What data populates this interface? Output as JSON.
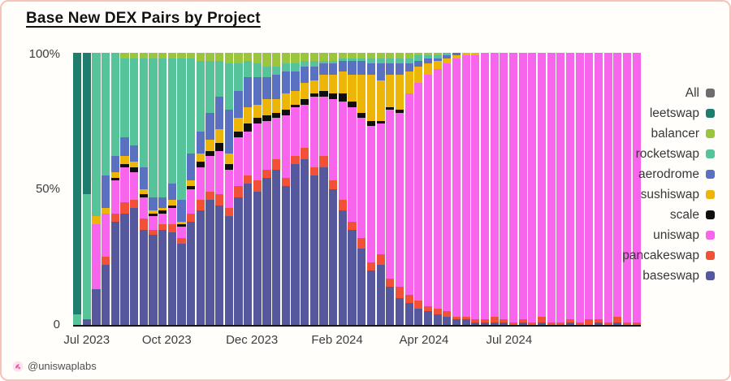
{
  "title": "Base New DEX Pairs by Project",
  "watermark": {
    "handle": "@uniswaplabs",
    "icon": "uniswap-unicorn-logo"
  },
  "legend": {
    "items": [
      {
        "label": "All",
        "color": "#6d6d6d"
      },
      {
        "label": "leetswap",
        "color": "#1e7d6d"
      },
      {
        "label": "balancer",
        "color": "#9bc53d"
      },
      {
        "label": "rocketswap",
        "color": "#57c39b"
      },
      {
        "label": "aerodrome",
        "color": "#5a70c0"
      },
      {
        "label": "sushiswap",
        "color": "#edb508"
      },
      {
        "label": "scale",
        "color": "#0f0f0f"
      },
      {
        "label": "uniswap",
        "color": "#f765ec"
      },
      {
        "label": "pancakeswap",
        "color": "#f25138"
      },
      {
        "label": "baseswap",
        "color": "#55589d"
      }
    ]
  },
  "chart_data": {
    "type": "bar",
    "stacked": true,
    "normalized": "percent",
    "title": "Base New DEX Pairs by Project",
    "xlabel": "",
    "ylabel": "",
    "ylim": [
      0,
      100
    ],
    "grid": false,
    "legend_position": "right-outside",
    "yticks": [
      "100%",
      "50%",
      "0"
    ],
    "xticks": [
      {
        "label": "Jul 2023",
        "pos": 2.4
      },
      {
        "label": "Oct 2023",
        "pos": 16.5
      },
      {
        "label": "Dec 2023",
        "pos": 31.5
      },
      {
        "label": "Feb 2024",
        "pos": 46.5
      },
      {
        "label": "Apr 2024",
        "pos": 61.8
      },
      {
        "label": "Jul 2024",
        "pos": 76.8
      }
    ],
    "series_order_bottom_to_top": [
      "baseswap",
      "pancakeswap",
      "uniswap",
      "scale",
      "sushiswap",
      "aerodrome",
      "rocketswap",
      "balancer",
      "leetswap"
    ],
    "series_colors": {
      "baseswap": "#55589d",
      "pancakeswap": "#f25138",
      "uniswap": "#f765ec",
      "scale": "#0f0f0f",
      "sushiswap": "#edb508",
      "aerodrome": "#5a70c0",
      "rocketswap": "#57c39b",
      "balancer": "#9bc53d",
      "leetswap": "#1e7d6d"
    },
    "bars": [
      [
        0,
        0,
        0,
        0,
        0,
        0,
        4,
        0,
        96
      ],
      [
        2,
        0,
        0,
        0,
        0,
        0,
        46,
        0,
        52
      ],
      [
        13,
        0,
        24,
        0,
        3,
        0,
        60,
        0,
        0
      ],
      [
        22,
        3,
        16,
        0,
        2,
        12,
        45,
        0,
        0
      ],
      [
        38,
        3,
        12,
        1,
        2,
        6,
        38,
        0,
        0
      ],
      [
        41,
        4,
        13,
        1,
        3,
        7,
        29,
        2,
        0
      ],
      [
        43,
        3,
        10,
        2,
        2,
        6,
        32,
        2,
        0
      ],
      [
        35,
        4,
        8,
        1,
        2,
        8,
        40,
        2,
        0
      ],
      [
        33,
        2,
        5,
        1,
        1,
        5,
        51,
        2,
        0
      ],
      [
        35,
        2,
        4,
        1,
        1,
        4,
        51,
        2,
        0
      ],
      [
        34,
        3,
        6,
        1,
        2,
        6,
        46,
        2,
        0
      ],
      [
        30,
        2,
        4,
        1,
        1,
        8,
        52,
        2,
        0
      ],
      [
        38,
        3,
        9,
        1,
        2,
        10,
        35,
        2,
        0
      ],
      [
        42,
        4,
        12,
        2,
        3,
        8,
        26,
        3,
        0
      ],
      [
        46,
        3,
        13,
        2,
        4,
        10,
        19,
        3,
        0
      ],
      [
        44,
        4,
        16,
        3,
        5,
        12,
        13,
        3,
        0
      ],
      [
        40,
        3,
        14,
        2,
        4,
        16,
        17,
        4,
        0
      ],
      [
        47,
        4,
        18,
        2,
        5,
        10,
        10,
        4,
        0
      ],
      [
        52,
        3,
        16,
        3,
        6,
        11,
        6,
        3,
        0
      ],
      [
        49,
        4,
        21,
        2,
        5,
        10,
        5,
        4,
        0
      ],
      [
        54,
        3,
        18,
        2,
        6,
        8,
        4,
        5,
        0
      ],
      [
        57,
        4,
        15,
        2,
        5,
        9,
        3,
        5,
        0
      ],
      [
        51,
        3,
        23,
        2,
        6,
        8,
        3,
        4,
        0
      ],
      [
        59,
        3,
        18,
        1,
        5,
        7,
        3,
        4,
        0
      ],
      [
        61,
        4,
        16,
        2,
        6,
        6,
        2,
        3,
        0
      ],
      [
        55,
        3,
        26,
        1,
        5,
        5,
        2,
        3,
        0
      ],
      [
        58,
        4,
        22,
        2,
        6,
        4,
        1,
        3,
        0
      ],
      [
        50,
        3,
        30,
        2,
        7,
        4,
        1,
        3,
        0
      ],
      [
        42,
        4,
        36,
        3,
        8,
        4,
        1,
        2,
        0
      ],
      [
        35,
        3,
        42,
        2,
        10,
        5,
        1,
        2,
        0
      ],
      [
        28,
        4,
        44,
        2,
        14,
        5,
        1,
        2,
        0
      ],
      [
        20,
        3,
        50,
        2,
        17,
        4,
        2,
        2,
        0
      ],
      [
        22,
        4,
        48,
        1,
        15,
        6,
        2,
        2,
        0
      ],
      [
        14,
        3,
        62,
        1,
        12,
        4,
        2,
        2,
        0
      ],
      [
        10,
        4,
        64,
        1,
        13,
        4,
        2,
        2,
        0
      ],
      [
        8,
        3,
        74,
        0,
        8,
        3,
        2,
        2,
        0
      ],
      [
        6,
        3,
        80,
        0,
        6,
        2,
        2,
        1,
        0
      ],
      [
        5,
        2,
        85,
        0,
        4,
        2,
        1,
        1,
        0
      ],
      [
        4,
        2,
        88,
        0,
        3,
        1,
        1,
        1,
        0
      ],
      [
        3,
        2,
        91,
        0,
        2,
        1,
        1,
        0,
        0
      ],
      [
        2,
        1,
        95,
        0,
        1,
        1,
        0,
        0,
        0
      ],
      [
        2,
        1,
        96,
        0,
        1,
        0,
        0,
        0,
        0
      ],
      [
        1,
        1,
        97,
        0,
        1,
        0,
        0,
        0,
        0
      ],
      [
        1,
        1,
        98,
        0,
        0,
        0,
        0,
        0,
        0
      ],
      [
        1,
        2,
        97,
        0,
        0,
        0,
        0,
        0,
        0
      ],
      [
        1,
        1,
        98,
        0,
        0,
        0,
        0,
        0,
        0
      ],
      [
        0,
        1,
        99,
        0,
        0,
        0,
        0,
        0,
        0
      ],
      [
        1,
        1,
        98,
        0,
        0,
        0,
        0,
        0,
        0
      ],
      [
        0,
        1,
        99,
        0,
        0,
        0,
        0,
        0,
        0
      ],
      [
        1,
        2,
        97,
        0,
        0,
        0,
        0,
        0,
        0
      ],
      [
        0,
        1,
        99,
        0,
        0,
        0,
        0,
        0,
        0
      ],
      [
        0,
        1,
        99,
        0,
        0,
        0,
        0,
        0,
        0
      ],
      [
        1,
        1,
        98,
        0,
        0,
        0,
        0,
        0,
        0
      ],
      [
        0,
        1,
        99,
        0,
        0,
        0,
        0,
        0,
        0
      ],
      [
        0,
        2,
        98,
        0,
        0,
        0,
        0,
        0,
        0
      ],
      [
        1,
        1,
        98,
        0,
        0,
        0,
        0,
        0,
        0
      ],
      [
        0,
        1,
        99,
        0,
        0,
        0,
        0,
        0,
        0
      ],
      [
        1,
        2,
        97,
        0,
        0,
        0,
        0,
        0,
        0
      ],
      [
        0,
        1,
        99,
        0,
        0,
        0,
        0,
        0,
        0
      ],
      [
        0,
        1,
        99,
        0,
        0,
        0,
        0,
        0,
        0
      ]
    ]
  }
}
